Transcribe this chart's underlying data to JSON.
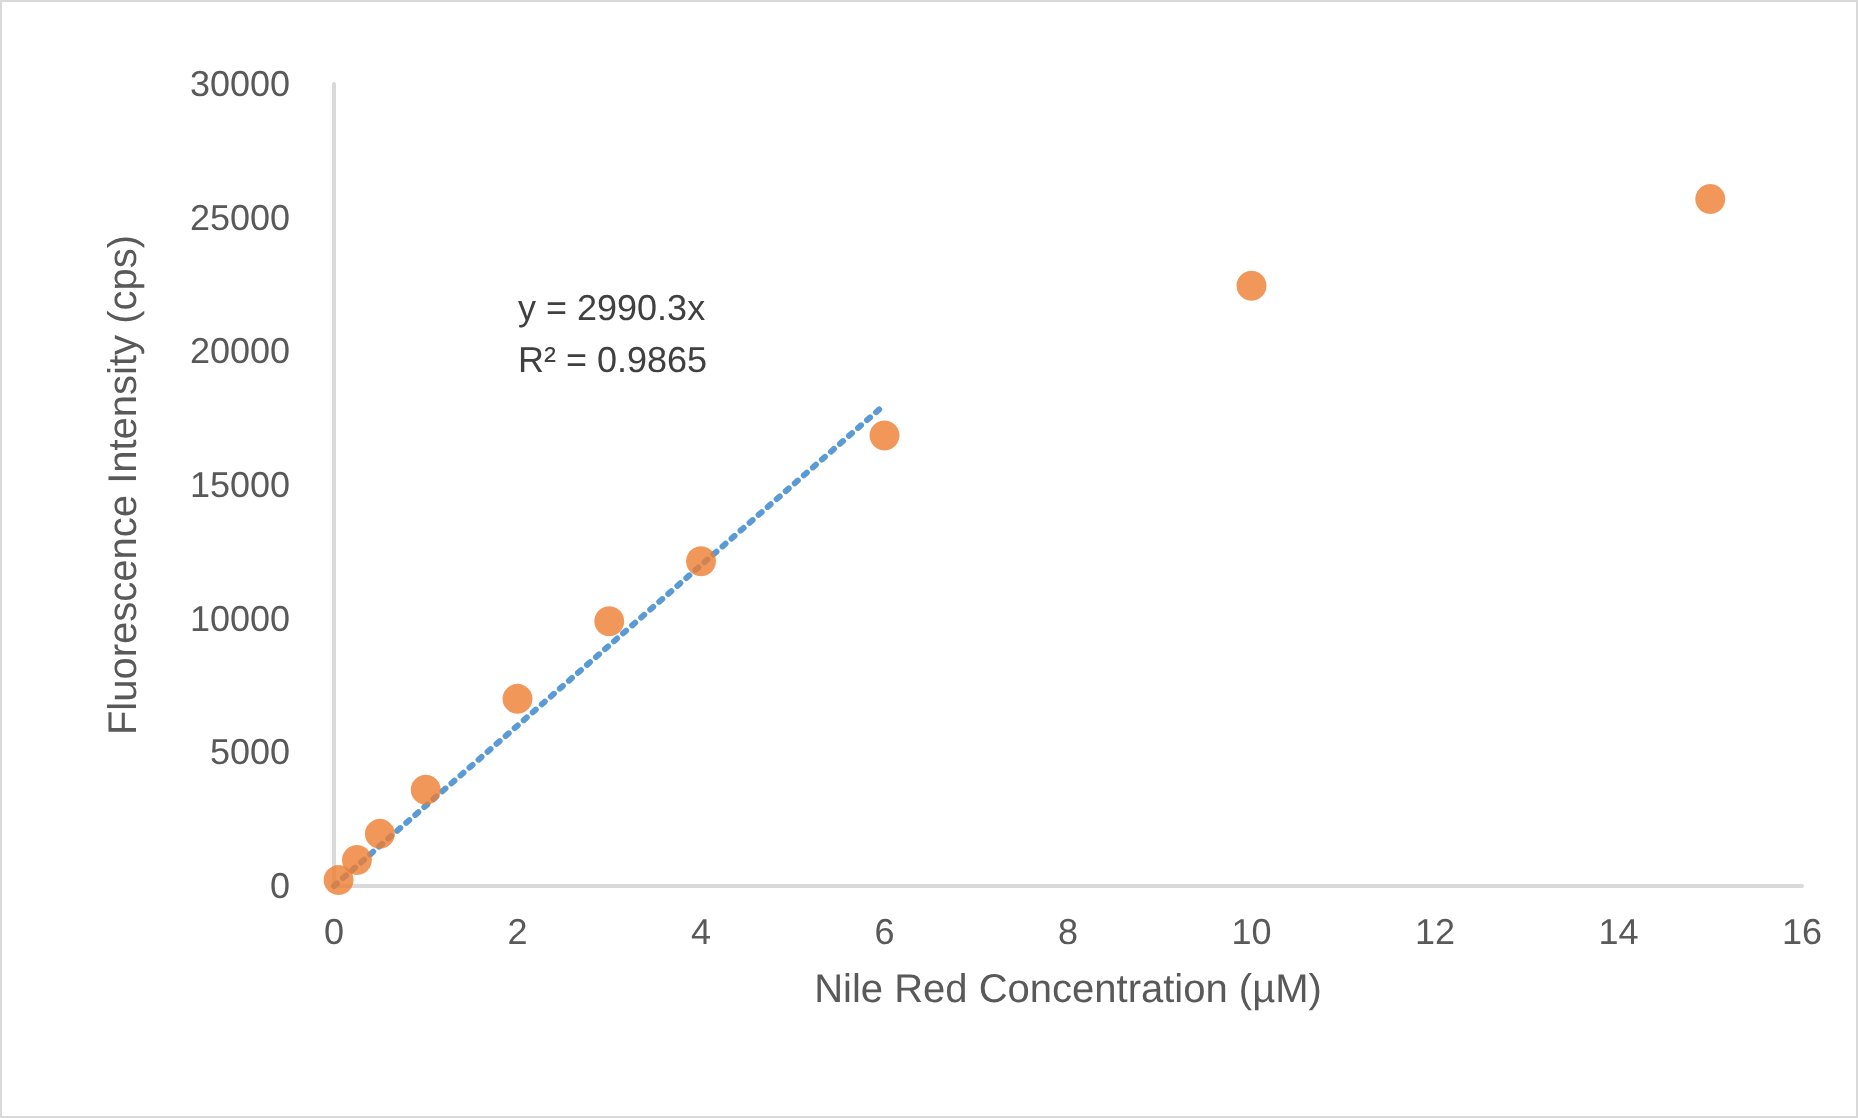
{
  "chart_data": {
    "type": "scatter",
    "xlabel": "Nile Red Concentration (µM)",
    "ylabel": "Fluorescence Intensity (cps)",
    "xlim": [
      0,
      16
    ],
    "xticks": [
      0,
      2,
      4,
      6,
      8,
      10,
      12,
      14,
      16
    ],
    "ylim": [
      0,
      30000
    ],
    "yticks": [
      0,
      5000,
      10000,
      15000,
      20000,
      25000,
      30000
    ],
    "grid": false,
    "marker": "circle",
    "series": [
      {
        "type": "scatter",
        "color": "#ed7d31",
        "x": [
          0.05,
          0.25,
          0.5,
          1,
          2,
          3,
          4,
          6,
          10,
          15
        ],
        "values": [
          220,
          970,
          1950,
          3600,
          7000,
          9900,
          12150,
          16850,
          22450,
          25700
        ]
      },
      {
        "type": "line",
        "color": "#5b9bd5",
        "line_style": "dotted",
        "marker": "none",
        "x": [
          0,
          6
        ],
        "values": [
          0,
          18000
        ]
      }
    ],
    "annotations": [
      "y = 2990.3x",
      "R² = 0.9865"
    ]
  }
}
